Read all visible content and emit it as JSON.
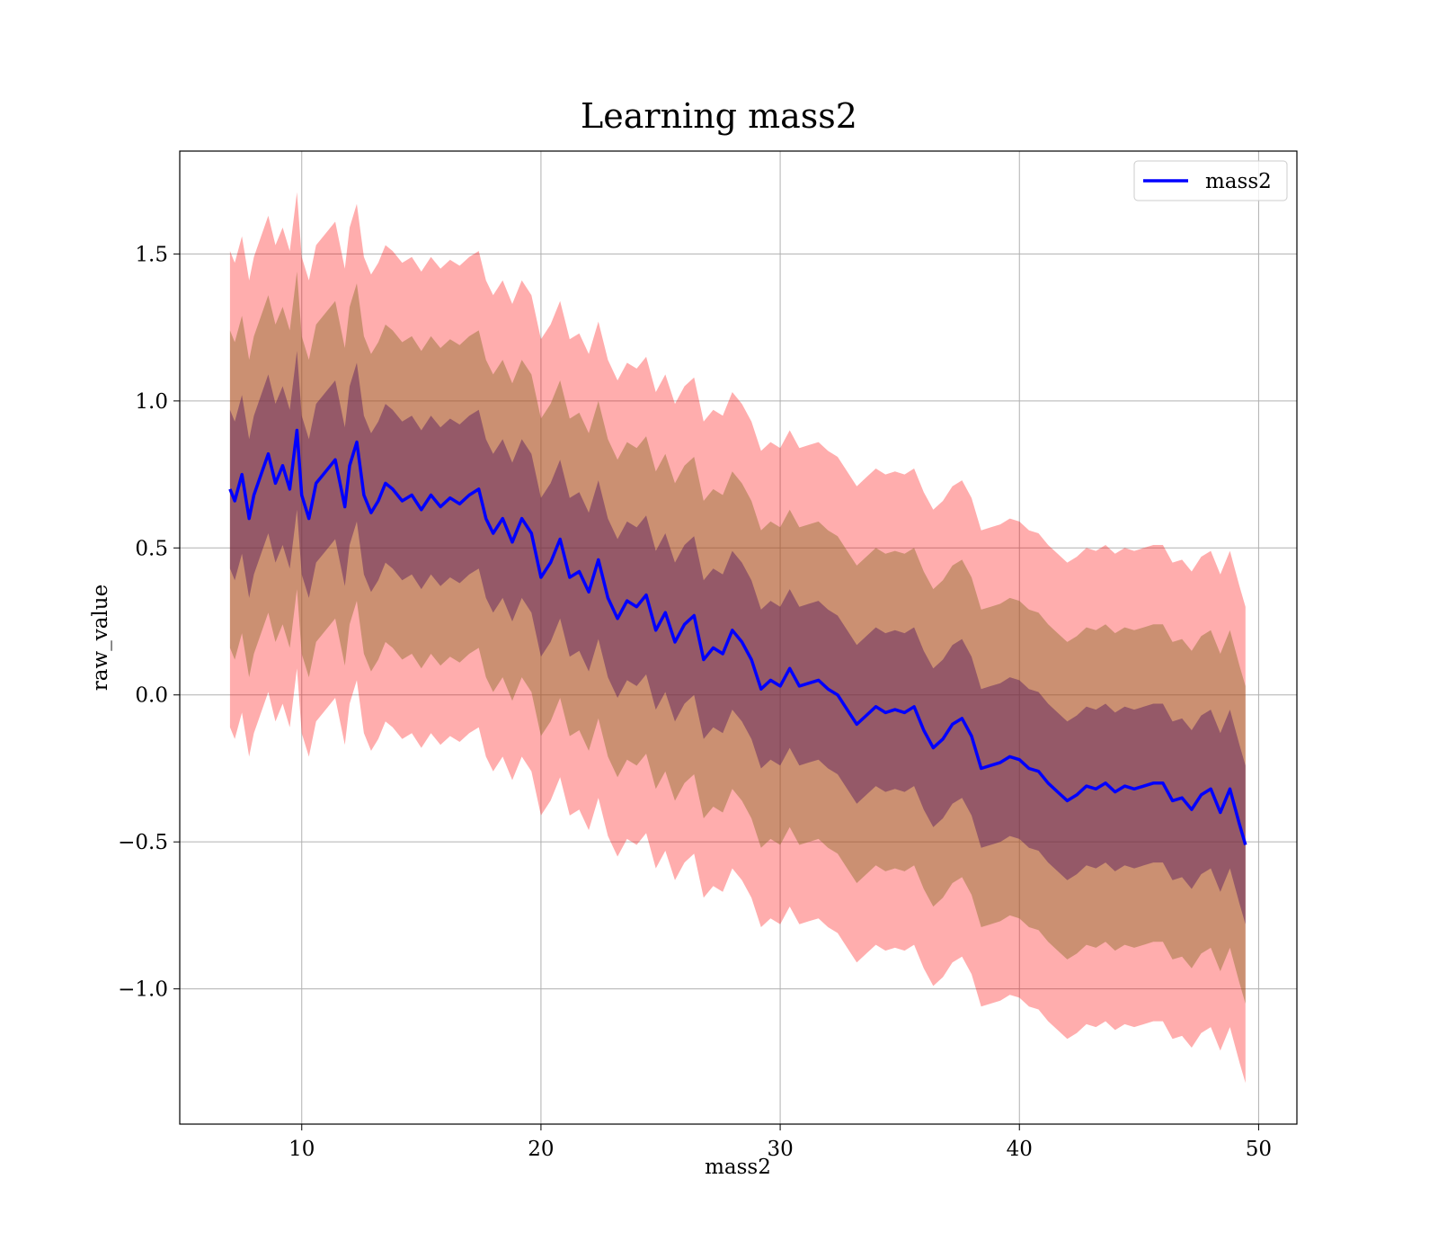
{
  "chart_data": {
    "type": "line",
    "title": "Learning mass2",
    "xlabel": "mass2",
    "ylabel": "raw_value",
    "xlim": [
      4.9,
      51.6
    ],
    "ylim": [
      -1.46,
      1.85
    ],
    "xticks": [
      10,
      20,
      30,
      40,
      50
    ],
    "xtick_labels": [
      "10",
      "20",
      "30",
      "40",
      "50"
    ],
    "yticks": [
      -1.0,
      -0.5,
      0.0,
      0.5,
      1.0,
      1.5
    ],
    "ytick_labels": [
      "−1.0",
      "−0.5",
      "0.0",
      "0.5",
      "1.0",
      "1.5"
    ],
    "grid": true,
    "legend": {
      "position": "top-right",
      "entries": [
        "mass2"
      ]
    },
    "colors": {
      "line": "#0000ff",
      "band_outer": "#ff0000",
      "band_middle": "#8b6d2a",
      "band_inner": "#4a0f5a"
    },
    "band_half_widths": [
      0.27,
      0.54,
      0.81
    ],
    "series": [
      {
        "name": "mass2",
        "x": [
          7.0,
          7.2,
          7.5,
          7.8,
          8.0,
          8.3,
          8.6,
          8.9,
          9.2,
          9.5,
          9.8,
          10.0,
          10.3,
          10.6,
          11.0,
          11.4,
          11.8,
          12.0,
          12.3,
          12.6,
          12.9,
          13.2,
          13.5,
          13.8,
          14.2,
          14.6,
          15.0,
          15.4,
          15.8,
          16.2,
          16.6,
          17.0,
          17.4,
          17.7,
          18.0,
          18.4,
          18.8,
          19.2,
          19.6,
          20.0,
          20.4,
          20.8,
          21.2,
          21.6,
          22.0,
          22.4,
          22.8,
          23.2,
          23.6,
          24.0,
          24.4,
          24.8,
          25.2,
          25.6,
          26.0,
          26.4,
          26.8,
          27.2,
          27.6,
          28.0,
          28.4,
          28.8,
          29.2,
          29.6,
          30.0,
          30.4,
          30.8,
          31.2,
          31.6,
          32.0,
          32.4,
          32.8,
          33.2,
          33.6,
          34.0,
          34.4,
          34.8,
          35.2,
          35.6,
          36.0,
          36.4,
          36.8,
          37.2,
          37.6,
          38.0,
          38.4,
          38.8,
          39.2,
          39.6,
          40.0,
          40.4,
          40.8,
          41.2,
          41.6,
          42.0,
          42.4,
          42.8,
          43.2,
          43.6,
          44.0,
          44.4,
          44.8,
          45.2,
          45.6,
          46.0,
          46.4,
          46.8,
          47.2,
          47.6,
          48.0,
          48.4,
          48.8,
          49.0,
          49.2,
          49.45
        ],
        "y": [
          0.7,
          0.66,
          0.75,
          0.6,
          0.68,
          0.75,
          0.82,
          0.72,
          0.78,
          0.7,
          0.9,
          0.68,
          0.6,
          0.72,
          0.76,
          0.8,
          0.64,
          0.78,
          0.86,
          0.68,
          0.62,
          0.66,
          0.72,
          0.7,
          0.66,
          0.68,
          0.63,
          0.68,
          0.64,
          0.67,
          0.65,
          0.68,
          0.7,
          0.6,
          0.55,
          0.6,
          0.52,
          0.6,
          0.55,
          0.4,
          0.45,
          0.53,
          0.4,
          0.42,
          0.35,
          0.46,
          0.33,
          0.26,
          0.32,
          0.3,
          0.34,
          0.22,
          0.28,
          0.18,
          0.24,
          0.27,
          0.12,
          0.16,
          0.14,
          0.22,
          0.18,
          0.12,
          0.02,
          0.05,
          0.03,
          0.09,
          0.03,
          0.04,
          0.05,
          0.02,
          0.0,
          -0.05,
          -0.1,
          -0.07,
          -0.04,
          -0.06,
          -0.05,
          -0.06,
          -0.04,
          -0.12,
          -0.18,
          -0.15,
          -0.1,
          -0.08,
          -0.14,
          -0.25,
          -0.24,
          -0.23,
          -0.21,
          -0.22,
          -0.25,
          -0.26,
          -0.3,
          -0.33,
          -0.36,
          -0.34,
          -0.31,
          -0.32,
          -0.3,
          -0.33,
          -0.31,
          -0.32,
          -0.31,
          -0.3,
          -0.3,
          -0.36,
          -0.35,
          -0.39,
          -0.34,
          -0.32,
          -0.4,
          -0.32,
          -0.38,
          -0.44,
          -0.51
        ]
      }
    ]
  }
}
